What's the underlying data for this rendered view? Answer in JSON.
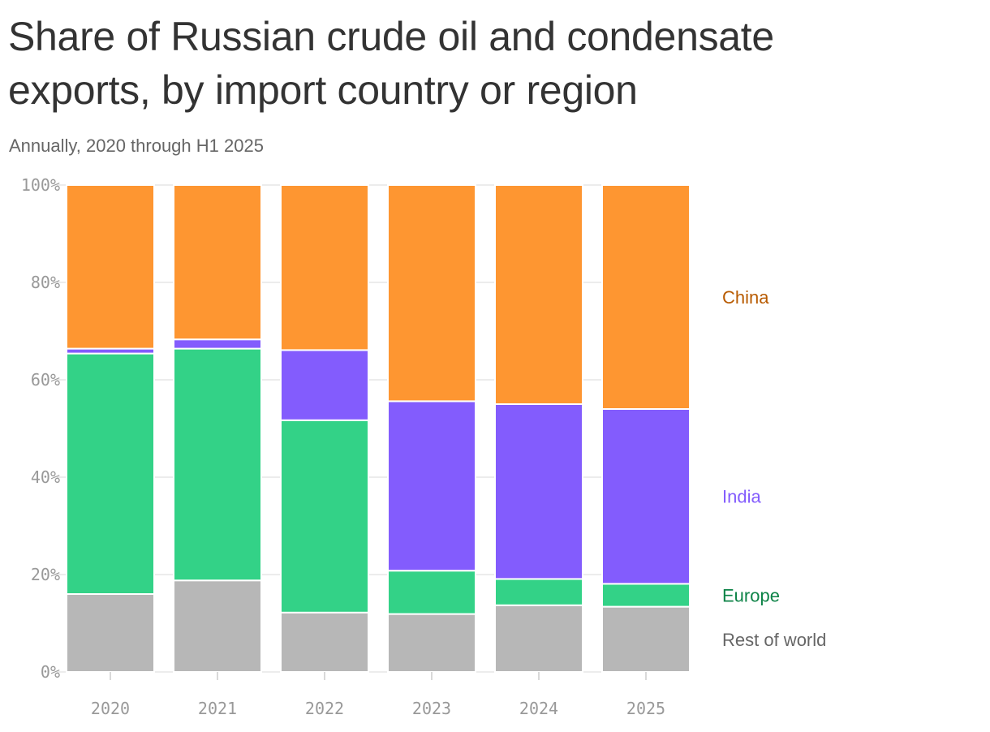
{
  "header": {
    "title": "Share of Russian crude oil and condensate exports, by import country or region",
    "subtitle": "Annually, 2020 through H1 2025"
  },
  "chart_data": {
    "type": "bar",
    "stacked": true,
    "normalized": true,
    "categories": [
      "2020",
      "2021",
      "2022",
      "2023",
      "2024",
      "2025"
    ],
    "series": [
      {
        "name": "Rest of world",
        "values": [
          16,
          18.8,
          12.2,
          11.9,
          13.7,
          13.4
        ],
        "color": "#b7b7b7",
        "label_color": "#666666"
      },
      {
        "name": "Europe",
        "values": [
          49.4,
          47.6,
          39.5,
          8.9,
          5.4,
          4.7
        ],
        "color": "#33d287",
        "label_color": "#0d8347"
      },
      {
        "name": "India",
        "values": [
          1,
          1.9,
          14.4,
          34.8,
          35.9,
          35.9
        ],
        "color": "#835cfd",
        "label_color": "#835cfd"
      },
      {
        "name": "China",
        "values": [
          33.6,
          31.7,
          33.9,
          44.4,
          45,
          46
        ],
        "color": "#fe9631",
        "label_color": "#b85b00"
      }
    ],
    "legend_order": [
      "China",
      "India",
      "Europe",
      "Rest of world"
    ],
    "ylim": [
      0,
      100
    ],
    "yticks": [
      0,
      20,
      40,
      60,
      80,
      100
    ],
    "ytick_labels": [
      "0%",
      "20%",
      "40%",
      "60%",
      "80%",
      "100%"
    ],
    "xlabel": "",
    "ylabel": "",
    "grid": true,
    "legend_placement": "right, labels aligned to last bar"
  }
}
